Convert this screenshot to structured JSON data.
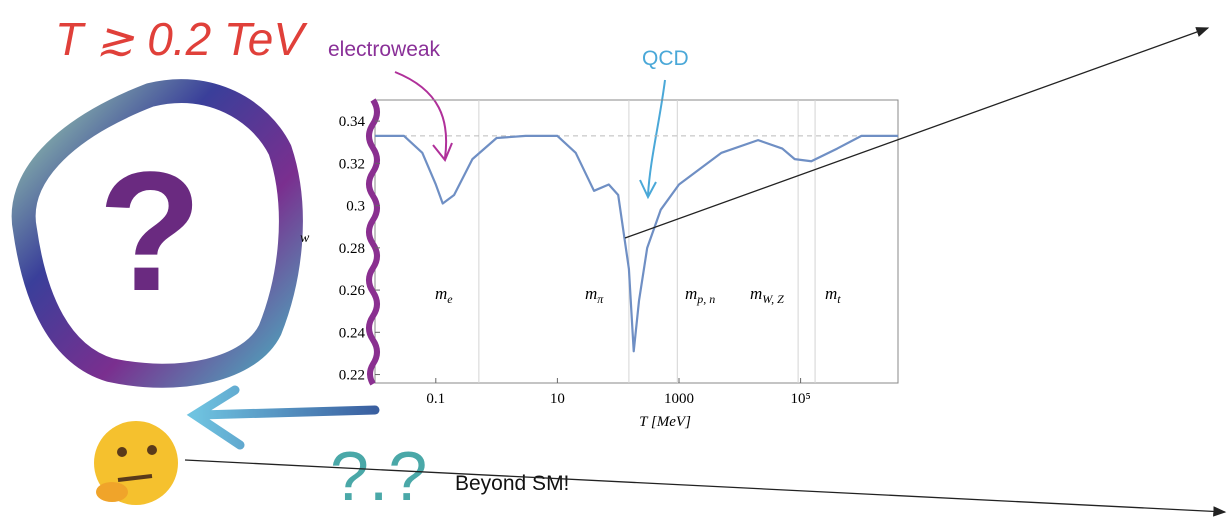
{
  "chart_data": {
    "type": "line",
    "title": "T ≳ 0.2 TeV",
    "x_label": "T [MeV]",
    "y_label": "w",
    "xlim": [
      0.01,
      4000000
    ],
    "ylim": [
      0.216,
      0.35
    ],
    "xscale": "log",
    "xticks": [
      0.1,
      10,
      1000,
      {
        "value": 100000,
        "label": "10⁵"
      }
    ],
    "yticks": [
      0.22,
      0.24,
      0.26,
      0.28,
      0.3,
      0.32,
      0.34
    ],
    "reference_line": 0.333,
    "vlines": [
      0.511,
      150,
      938,
      91000,
      173000
    ],
    "x": [
      0.01,
      0.03,
      0.06,
      0.1,
      0.13,
      0.2,
      0.4,
      1,
      3,
      10,
      20,
      40,
      70,
      100,
      150,
      180,
      220,
      300,
      500,
      1000,
      5000,
      20000,
      50000,
      80000,
      150000,
      400000,
      1000000,
      4000000
    ],
    "series": [
      {
        "color": "#6f8fc4",
        "values": [
          0.333,
          0.333,
          0.325,
          0.31,
          0.301,
          0.305,
          0.322,
          0.332,
          0.333,
          0.333,
          0.325,
          0.307,
          0.31,
          0.305,
          0.27,
          0.231,
          0.255,
          0.28,
          0.298,
          0.31,
          0.325,
          0.331,
          0.327,
          0.322,
          0.321,
          0.327,
          0.333,
          0.333
        ]
      }
    ],
    "mass_labels": [
      {
        "base": "m",
        "sub": "e"
      },
      {
        "base": "m",
        "sub": "π"
      },
      {
        "base": "m",
        "sub": "p, n"
      },
      {
        "base": "m",
        "sub": "W, Z"
      },
      {
        "base": "m",
        "sub": "t"
      }
    ],
    "annotations": {
      "electroweak": "electroweak",
      "qcd": "QCD",
      "beyond": "Beyond SM!",
      "question": "?",
      "doodle": "?.?"
    }
  }
}
